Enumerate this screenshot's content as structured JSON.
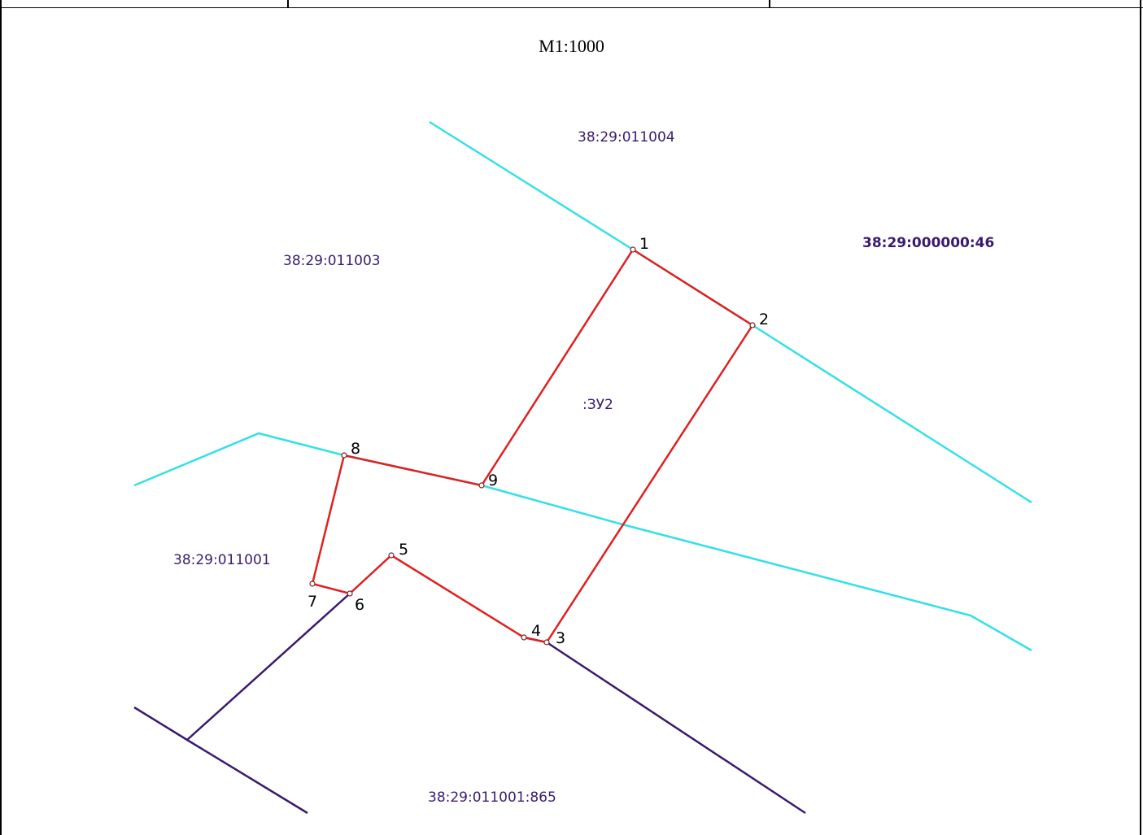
{
  "scale": "M1:1000",
  "parcel": {
    "label": ":ЗУ2",
    "points": [
      {
        "name": "1",
        "label": "1"
      },
      {
        "name": "2",
        "label": "2"
      },
      {
        "name": "3",
        "label": "3"
      },
      {
        "name": "4",
        "label": "4"
      },
      {
        "name": "5",
        "label": "5"
      },
      {
        "name": "6",
        "label": "6"
      },
      {
        "name": "7",
        "label": "7"
      },
      {
        "name": "8",
        "label": "8"
      },
      {
        "name": "9",
        "label": "9"
      }
    ]
  },
  "cadastral_labels": {
    "block_north": "38:29:011004",
    "block_northwest": "38:29:011003",
    "block_east": "38:29:000000:46",
    "block_west": "38:29:011001",
    "parcel_south": "38:29:011001:865"
  },
  "colors": {
    "parcel_boundary": "#e02020",
    "block_boundary": "#33e0e8",
    "parcel_line": "#3a1a6e",
    "label_text": "#3a1a6e"
  }
}
